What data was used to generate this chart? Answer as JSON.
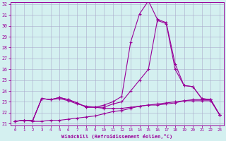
{
  "x": [
    0,
    1,
    2,
    3,
    4,
    5,
    6,
    7,
    8,
    9,
    10,
    11,
    12,
    13,
    14,
    15,
    16,
    17,
    18,
    19,
    20,
    21,
    22,
    23
  ],
  "line1": [
    21.2,
    21.3,
    21.2,
    21.2,
    21.3,
    21.3,
    21.4,
    21.5,
    21.6,
    21.7,
    21.9,
    22.1,
    22.2,
    22.4,
    22.6,
    22.7,
    22.8,
    22.9,
    23.0,
    23.1,
    23.1,
    23.1,
    23.1,
    21.8
  ],
  "line2": [
    21.2,
    21.3,
    21.3,
    23.3,
    23.2,
    23.3,
    23.1,
    22.8,
    22.6,
    22.5,
    22.4,
    22.4,
    22.4,
    22.5,
    22.6,
    22.7,
    22.7,
    22.8,
    22.9,
    23.1,
    23.2,
    23.2,
    23.2,
    21.8
  ],
  "line3": [
    21.2,
    21.3,
    21.3,
    23.3,
    23.2,
    23.4,
    23.2,
    22.9,
    22.5,
    22.5,
    22.5,
    22.8,
    23.0,
    24.0,
    25.0,
    26.0,
    30.5,
    30.2,
    26.0,
    24.5,
    24.4,
    23.3,
    23.2,
    21.8
  ],
  "line4": [
    21.2,
    21.3,
    21.3,
    23.3,
    23.2,
    23.4,
    23.2,
    22.9,
    22.5,
    22.5,
    22.7,
    23.0,
    23.5,
    28.5,
    31.1,
    32.3,
    30.6,
    30.3,
    26.5,
    24.5,
    24.4,
    23.3,
    23.2,
    21.8
  ],
  "line_color": "#990099",
  "bg_color": "#d4f0f0",
  "grid_color": "#aaaacc",
  "ylim_min": 21,
  "ylim_max": 32,
  "xlim_min": 0,
  "xlim_max": 23,
  "yticks": [
    21,
    22,
    23,
    24,
    25,
    26,
    27,
    28,
    29,
    30,
    31,
    32
  ],
  "xticks": [
    0,
    1,
    2,
    3,
    4,
    5,
    6,
    7,
    8,
    9,
    10,
    11,
    12,
    13,
    14,
    15,
    16,
    17,
    18,
    19,
    20,
    21,
    22,
    23
  ],
  "xlabel": "Windchill (Refroidissement éolien,°C)",
  "marker": "+"
}
